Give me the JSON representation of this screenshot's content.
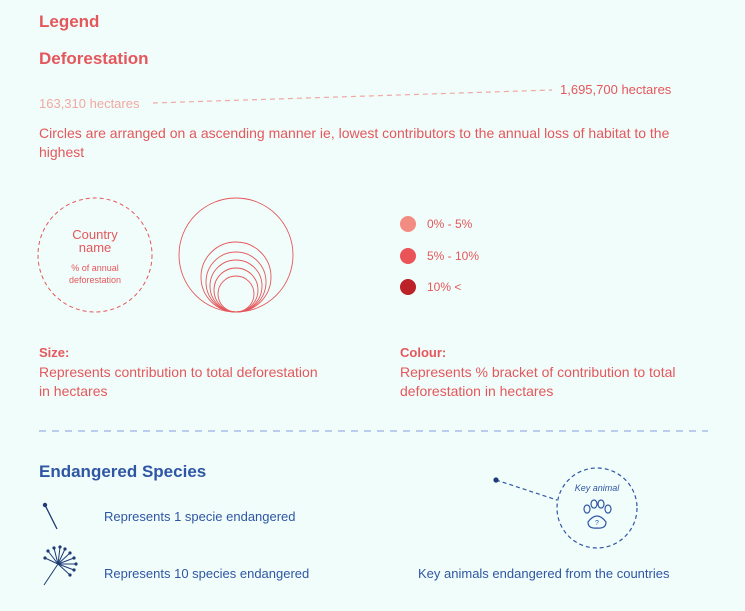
{
  "legend": {
    "title": "Legend",
    "deforestation": {
      "heading": "Deforestation",
      "min_label": "163,310 hectares",
      "max_label": "1,695,700 hectares",
      "description": "Circles are arranged on a ascending manner ie, lowest contributors to the annual loss of habitat to the highest",
      "sample": {
        "country_line1": "Country",
        "country_line2": "name",
        "pct_line1": "% of annual",
        "pct_line2": "deforestation"
      },
      "colour_brackets": [
        {
          "label": "0% - 5%",
          "color": "#f28b82"
        },
        {
          "label": "5% - 10%",
          "color": "#ea5459"
        },
        {
          "label": "10% <",
          "color": "#bb2328"
        }
      ],
      "size_heading": "Size:",
      "size_line1": "Represents contribution to total deforestation",
      "size_line2": "in hectares",
      "colour_heading": "Colour:",
      "colour_line1": "Represents % bracket of contribution to total",
      "colour_line2": "deforestation in hectares"
    },
    "endangered": {
      "heading": "Endangered Species",
      "one_label": "Represents 1 specie endangered",
      "ten_label": "Represents 10 species endangered",
      "key_animal_badge": "Key animal",
      "key_animal_label": "Key animals endangered from the countries"
    },
    "colors": {
      "red_accent": "#e4575c",
      "blue_accent": "#2f56a5",
      "background": "#f1fdfa"
    }
  }
}
